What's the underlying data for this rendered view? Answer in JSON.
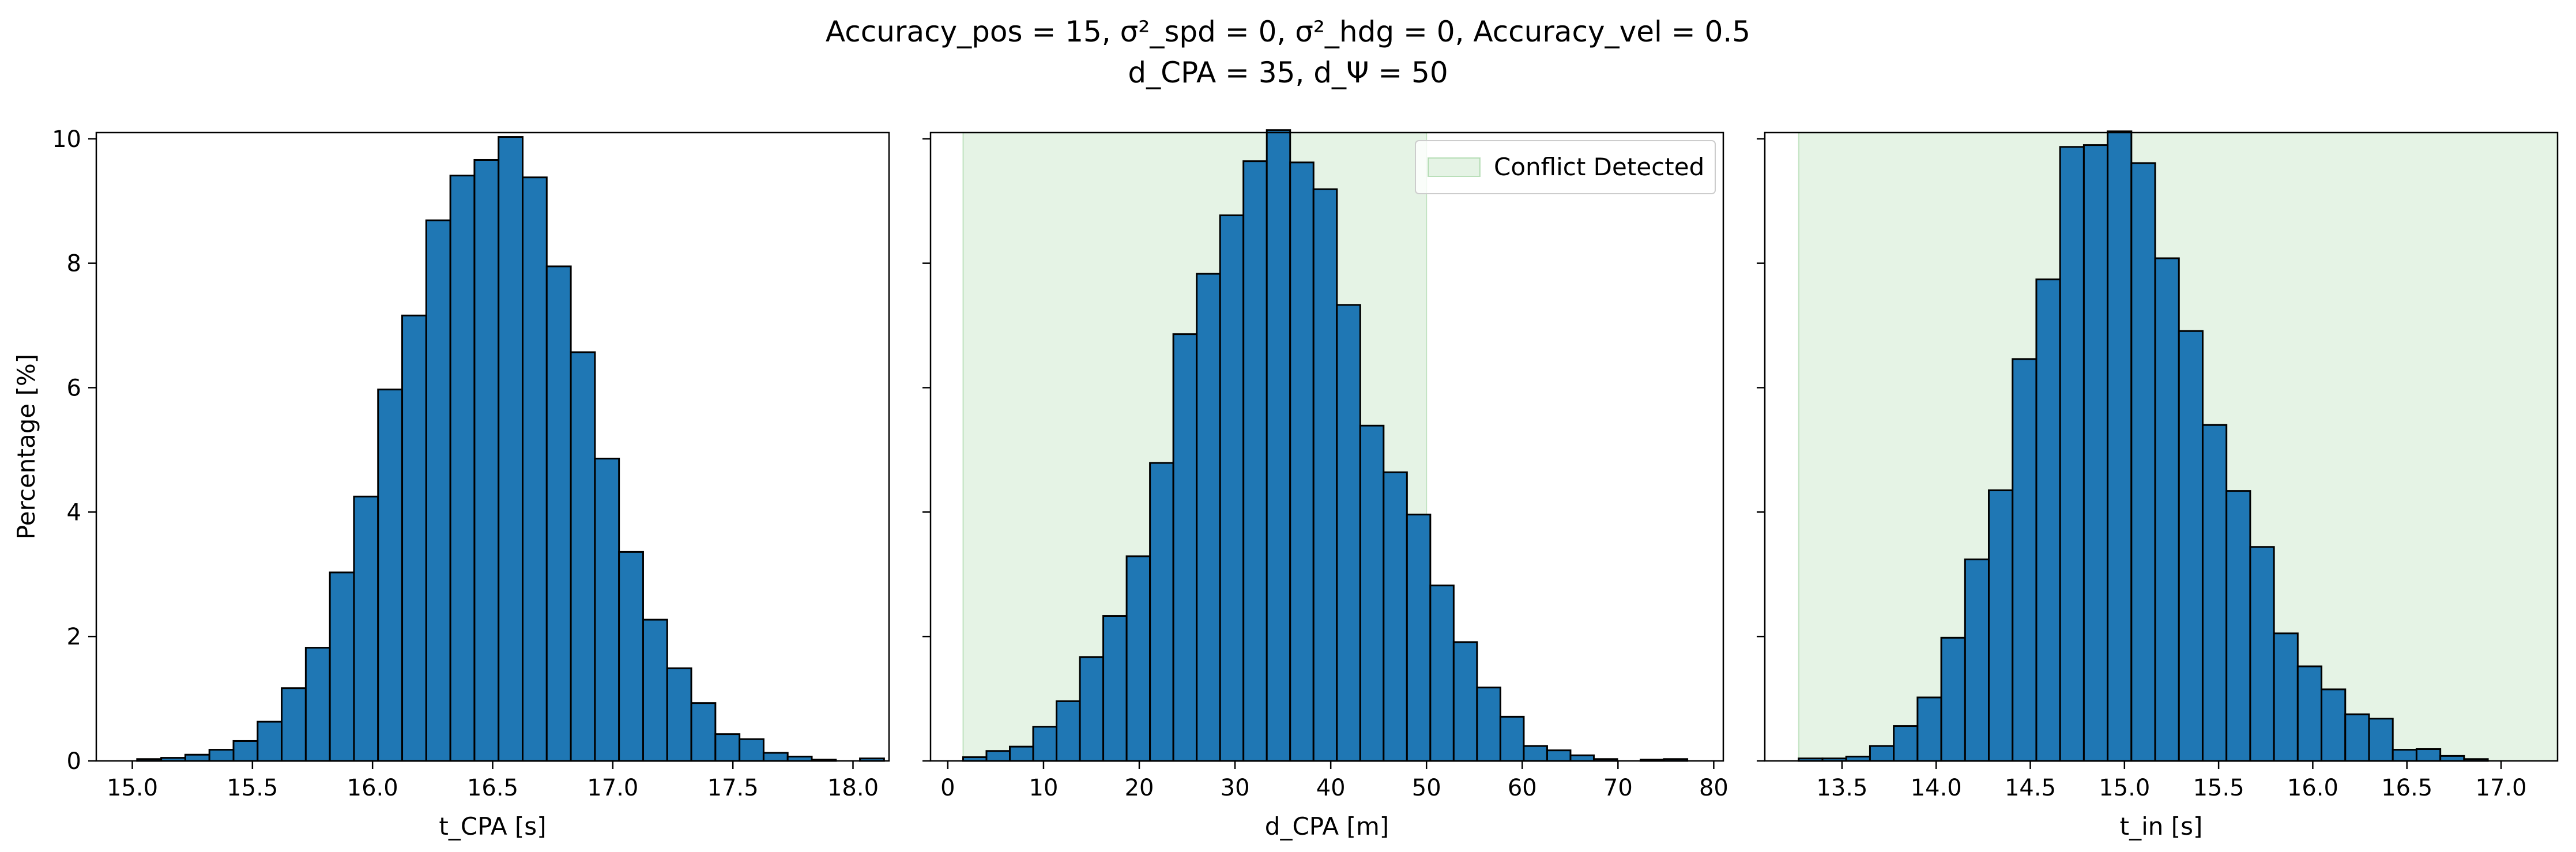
{
  "figure": {
    "title_line1": "Accuracy_pos = 15, σ²_spd = 0, σ²_hdg = 0, Accuracy_vel = 0.5",
    "title_line2": "d_CPA = 35, d_Ψ = 50"
  },
  "chart_data": [
    {
      "type": "bar",
      "subtype": "histogram",
      "xlabel": "t_CPA [s]",
      "ylabel": "Percentage [%]",
      "xlim": [
        14.85,
        18.15
      ],
      "ylim": [
        0,
        10.1
      ],
      "xticks": [
        15.0,
        15.5,
        16.0,
        16.5,
        17.0,
        17.5,
        18.0
      ],
      "xtick_labels": [
        "15.0",
        "15.5",
        "16.0",
        "16.5",
        "17.0",
        "17.5",
        "18.0"
      ],
      "yticks": [
        0,
        2,
        4,
        6,
        8,
        10
      ],
      "ytick_labels": [
        "0",
        "2",
        "4",
        "6",
        "8",
        "10"
      ],
      "bin_start": 15.02,
      "bin_width": 0.1003,
      "values": [
        0.03,
        0.05,
        0.1,
        0.18,
        0.32,
        0.63,
        1.17,
        1.82,
        3.03,
        4.25,
        5.97,
        7.16,
        8.69,
        9.41,
        9.66,
        10.03,
        9.38,
        7.95,
        6.57,
        4.86,
        3.36,
        2.27,
        1.49,
        0.93,
        0.43,
        0.35,
        0.13,
        0.07,
        0.02,
        0.0,
        0.04
      ],
      "bar_color": "#1f77b4",
      "edge_color": "#000000"
    },
    {
      "type": "bar",
      "subtype": "histogram",
      "xlabel": "d_CPA [m]",
      "xlim": [
        -1.8,
        81.0
      ],
      "ylim": [
        0,
        10.1
      ],
      "xticks": [
        0,
        10,
        20,
        30,
        40,
        50,
        60,
        70,
        80
      ],
      "xtick_labels": [
        "0",
        "10",
        "20",
        "30",
        "40",
        "50",
        "60",
        "70",
        "80"
      ],
      "yticks": [
        0,
        2,
        4,
        6,
        8,
        10
      ],
      "bin_start": 1.6,
      "bin_width": 2.44,
      "values": [
        0.06,
        0.16,
        0.23,
        0.55,
        0.96,
        1.67,
        2.33,
        3.29,
        4.79,
        6.86,
        7.83,
        8.77,
        9.64,
        10.14,
        9.62,
        9.19,
        7.33,
        5.39,
        4.64,
        3.96,
        2.82,
        1.91,
        1.18,
        0.71,
        0.24,
        0.17,
        0.09,
        0.03,
        0.0,
        0.02,
        0.03
      ],
      "shaded_region": {
        "x_from": 1.6,
        "x_to": 50,
        "color": "#2ca02c",
        "alpha": 0.12
      },
      "legend": {
        "label": "Conflict Detected",
        "location": "upper right"
      },
      "bar_color": "#1f77b4",
      "edge_color": "#000000"
    },
    {
      "type": "bar",
      "subtype": "histogram",
      "xlabel": "t_in [s]",
      "xlim": [
        13.09,
        17.3
      ],
      "ylim": [
        0,
        10.1
      ],
      "xticks": [
        13.5,
        14.0,
        14.5,
        15.0,
        15.5,
        16.0,
        16.5,
        17.0
      ],
      "xtick_labels": [
        "13.5",
        "14.0",
        "14.5",
        "15.0",
        "15.5",
        "16.0",
        "16.5",
        "17.0"
      ],
      "yticks": [
        0,
        2,
        4,
        6,
        8,
        10
      ],
      "bin_start": 13.27,
      "bin_width": 0.1262,
      "values": [
        0.04,
        0.04,
        0.07,
        0.24,
        0.56,
        1.02,
        1.98,
        3.24,
        4.35,
        6.46,
        7.74,
        9.87,
        9.9,
        10.12,
        9.61,
        8.08,
        6.91,
        5.4,
        4.34,
        3.44,
        2.05,
        1.52,
        1.15,
        0.75,
        0.68,
        0.18,
        0.19,
        0.08,
        0.03
      ],
      "shaded_region": {
        "x_from": 13.27,
        "x_to": 17.3,
        "color": "#2ca02c",
        "alpha": 0.12
      },
      "bar_color": "#1f77b4",
      "edge_color": "#000000"
    }
  ]
}
